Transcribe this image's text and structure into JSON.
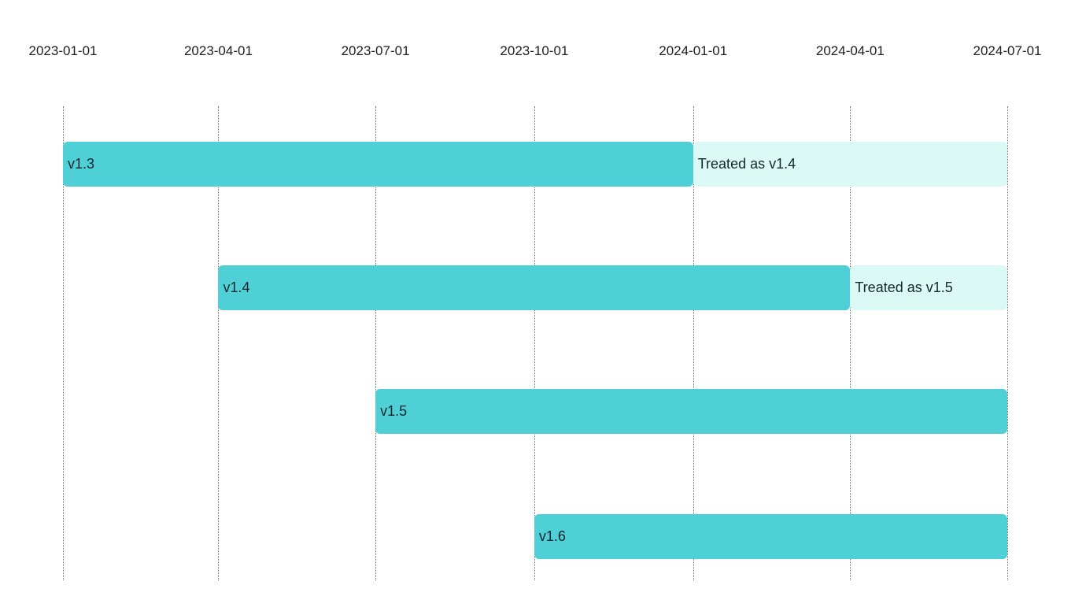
{
  "chart_data": {
    "type": "bar",
    "variant": "gantt-timeline",
    "title": "",
    "xlabel": "",
    "ylabel": "",
    "x_range": [
      "2023-01-01",
      "2024-07-01"
    ],
    "x_ticks": [
      "2023-01-01",
      "2023-04-01",
      "2023-07-01",
      "2023-10-01",
      "2024-01-01",
      "2024-04-01",
      "2024-07-01"
    ],
    "grid": "vertical-dotted",
    "legend": "none",
    "tasks": [
      {
        "label": "v1.3",
        "start": "2023-01-01",
        "end": "2024-01-01",
        "extension": {
          "label": "Treated as v1.4",
          "start": "2024-01-01",
          "end": "2024-07-01"
        }
      },
      {
        "label": "v1.4",
        "start": "2023-04-01",
        "end": "2024-04-01",
        "extension": {
          "label": "Treated as v1.5",
          "start": "2024-04-01",
          "end": "2024-07-01"
        }
      },
      {
        "label": "v1.5",
        "start": "2023-07-01",
        "end": "2024-07-01",
        "extension": null
      },
      {
        "label": "v1.6",
        "start": "2023-10-01",
        "end": "2024-07-01",
        "extension": null
      }
    ],
    "colors": {
      "bar": "#4ed0d6",
      "extension_bar": "#dcfaf5",
      "text": "#12272d",
      "gridline": "#6f6f6f"
    }
  }
}
